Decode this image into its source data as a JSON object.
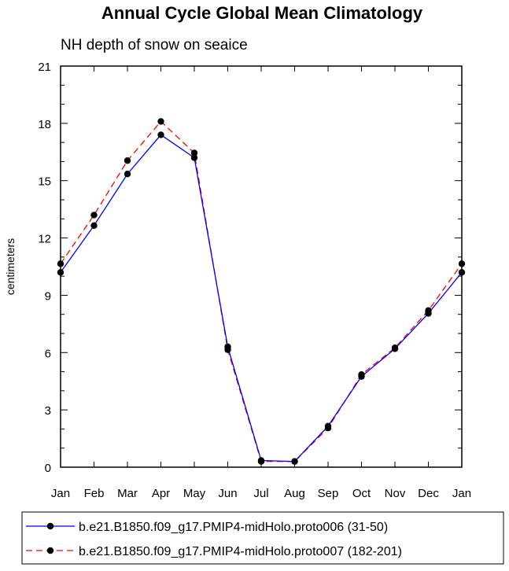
{
  "chart_data": {
    "type": "line",
    "title": "Annual Cycle Global Mean Climatology",
    "subtitle": "NH depth of snow on seaice",
    "xlabel": "",
    "ylabel": "centimeters",
    "categories": [
      "Jan",
      "Feb",
      "Mar",
      "Apr",
      "May",
      "Jun",
      "Jul",
      "Aug",
      "Sep",
      "Oct",
      "Nov",
      "Dec",
      "Jan"
    ],
    "ylim": [
      0,
      21
    ],
    "yticks": [
      0,
      3,
      6,
      9,
      12,
      15,
      18,
      21
    ],
    "ytick_labels": [
      "0",
      "3",
      "6",
      "9",
      "12",
      "15",
      "18",
      "21"
    ],
    "series": [
      {
        "name": "b.e21.B1850.f09_g17.PMIP4-midHolo.proto006 (31-50)",
        "color": "#0000ff",
        "dash": "solid",
        "values": [
          10.2,
          12.65,
          15.35,
          17.4,
          16.2,
          6.3,
          0.35,
          0.3,
          2.15,
          4.75,
          6.2,
          8.05,
          10.2
        ]
      },
      {
        "name": "b.e21.B1850.f09_g17.PMIP4-midHolo.proto007 (182-201)",
        "color": "#ff0000",
        "dash": "dashed",
        "values": [
          10.65,
          13.2,
          16.05,
          18.1,
          16.45,
          6.15,
          0.3,
          0.3,
          2.05,
          4.85,
          6.25,
          8.2,
          10.65
        ]
      }
    ],
    "legend": "bottom"
  }
}
